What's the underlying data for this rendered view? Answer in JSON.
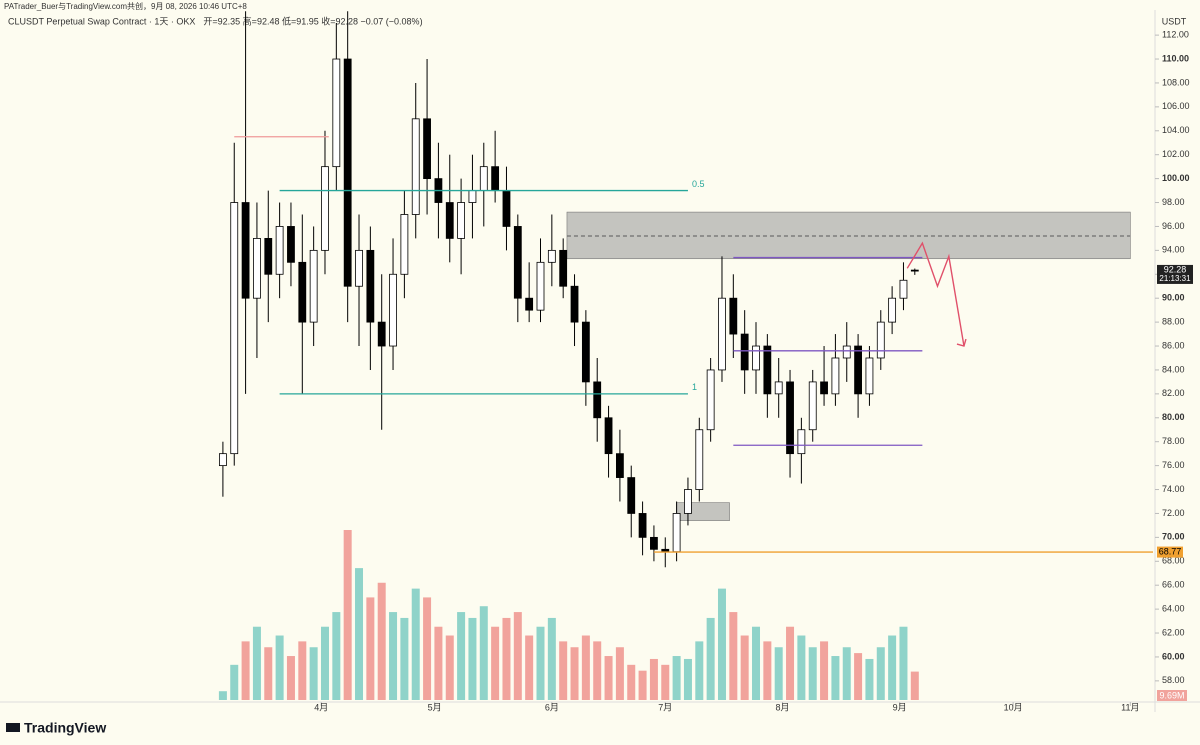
{
  "watermark": "PATrader_Buer与TradingView.com共创，9月 08, 2026 10:46 UTC+8",
  "branding": "TradingView",
  "chart_data": {
    "type": "candlestick",
    "title": "CLUSDT Perpetual Swap Contract · 1天 · OKX",
    "legend_text": "开=92.35  高=92.48  低=91.95  收=92.28  −0.07 (−0.08%)",
    "currency": "USDT",
    "x": [
      5,
      8,
      11,
      14,
      17,
      20,
      23,
      26,
      29,
      32,
      35,
      38,
      41,
      44,
      47,
      50,
      53,
      56,
      59,
      62,
      65,
      68,
      71,
      74,
      77,
      80,
      83,
      86,
      89,
      92,
      95,
      98,
      101,
      104,
      107,
      110,
      113,
      116,
      119,
      122,
      125,
      128,
      131,
      134,
      137,
      140,
      143,
      146,
      149,
      152,
      155,
      158,
      161,
      164,
      167,
      170,
      173,
      176,
      179,
      182,
      185,
      188
    ],
    "open": [
      76,
      77,
      98,
      90,
      95,
      92,
      96,
      93,
      88,
      94,
      101,
      110,
      91,
      94,
      88,
      86,
      92,
      97,
      105,
      100,
      98,
      95,
      98,
      99,
      101,
      99,
      96,
      90,
      89,
      93,
      94,
      91,
      88,
      83,
      80,
      77,
      75,
      72,
      70,
      69,
      68.8,
      72,
      74,
      79,
      84,
      90,
      87,
      84,
      86,
      82,
      83,
      77,
      79,
      83,
      82,
      85,
      86,
      82,
      85,
      88,
      90,
      92.35
    ],
    "high": [
      78,
      103,
      114,
      98,
      99,
      98,
      98,
      97,
      96,
      104,
      113,
      114,
      97,
      96,
      92,
      95,
      99,
      108,
      110,
      103,
      102,
      100,
      102,
      103,
      104,
      101,
      97,
      93,
      95,
      97,
      95,
      92,
      89,
      85,
      81,
      79,
      76,
      73,
      71,
      70,
      73,
      75,
      80,
      85,
      93.5,
      92,
      89,
      88,
      87,
      85,
      84,
      80,
      84,
      86,
      87,
      88,
      87,
      86,
      89,
      91,
      93,
      92.48
    ],
    "low": [
      73.4,
      76,
      82,
      85,
      88,
      90,
      91,
      82,
      86,
      92,
      99,
      88,
      86,
      84,
      79,
      84,
      90,
      95,
      97,
      95,
      93,
      92,
      95,
      96,
      98,
      94,
      88,
      88,
      88,
      91,
      90,
      86,
      81,
      78,
      75,
      73,
      70,
      68.5,
      68,
      67.5,
      68,
      71,
      73,
      78,
      83,
      85,
      82,
      82,
      80,
      80,
      75,
      74.5,
      78,
      81,
      81,
      83,
      80,
      81,
      84,
      87,
      89,
      91.95
    ],
    "close": [
      77,
      98,
      90,
      95,
      92,
      96,
      93,
      88,
      94,
      101,
      110,
      91,
      94,
      88,
      86,
      92,
      97,
      105,
      100,
      98,
      95,
      98,
      99,
      101,
      99,
      96,
      90,
      89,
      93,
      94,
      91,
      88,
      83,
      80,
      77,
      75,
      72,
      70,
      69,
      68.8,
      72,
      74,
      79,
      84,
      90,
      87,
      84,
      86,
      82,
      83,
      77,
      79,
      83,
      82,
      85,
      86,
      82,
      85,
      88,
      90,
      91.5,
      92.28
    ],
    "volume": [
      3,
      12,
      20,
      25,
      18,
      22,
      15,
      20,
      18,
      25,
      30,
      58,
      45,
      35,
      40,
      30,
      28,
      38,
      35,
      25,
      22,
      30,
      28,
      32,
      25,
      28,
      30,
      22,
      25,
      28,
      20,
      18,
      22,
      20,
      15,
      18,
      12,
      10,
      14,
      12,
      15,
      14,
      20,
      28,
      38,
      30,
      22,
      25,
      20,
      18,
      25,
      22,
      18,
      20,
      15,
      18,
      16,
      14,
      18,
      22,
      25,
      9.69
    ],
    "volume_label": "9.69M",
    "price_label": "92.28",
    "countdown": "21:13:31",
    "up_color": "#ffffff",
    "down_color": "#000000",
    "volume_up_color": "#8fd3c9",
    "volume_down_color": "#f1a39c",
    "xlim": [
      0,
      251
    ],
    "xticks": [
      {
        "value": 31,
        "label": "4月"
      },
      {
        "value": 61,
        "label": "5月"
      },
      {
        "value": 92,
        "label": "6月"
      },
      {
        "value": 122,
        "label": "7月"
      },
      {
        "value": 153,
        "label": "8月"
      },
      {
        "value": 184,
        "label": "9月"
      },
      {
        "value": 214,
        "label": "10月"
      },
      {
        "value": 245,
        "label": "11月"
      }
    ],
    "ylim": [
      56.4,
      114.1
    ],
    "yticks": [
      {
        "value": 58,
        "label": "58.00"
      },
      {
        "value": 60,
        "label": "60.00"
      },
      {
        "value": 62,
        "label": "62.00"
      },
      {
        "value": 64,
        "label": "64.00"
      },
      {
        "value": 66,
        "label": "66.00"
      },
      {
        "value": 68,
        "label": "68.00"
      },
      {
        "value": 70,
        "label": "70.00"
      },
      {
        "value": 72,
        "label": "72.00"
      },
      {
        "value": 74,
        "label": "74.00"
      },
      {
        "value": 76,
        "label": "76.00"
      },
      {
        "value": 78,
        "label": "78.00"
      },
      {
        "value": 80,
        "label": "80.00"
      },
      {
        "value": 82,
        "label": "82.00"
      },
      {
        "value": 84,
        "label": "84.00"
      },
      {
        "value": 86,
        "label": "86.00"
      },
      {
        "value": 88,
        "label": "88.00"
      },
      {
        "value": 90,
        "label": "90.00"
      },
      {
        "value": 92,
        "label": "92.00"
      },
      {
        "value": 94,
        "label": "94.00"
      },
      {
        "value": 96,
        "label": "96.00"
      },
      {
        "value": 98,
        "label": "98.00"
      },
      {
        "value": 100,
        "label": "100.00"
      },
      {
        "value": 102,
        "label": "102.00"
      },
      {
        "value": 104,
        "label": "104.00"
      },
      {
        "value": 106,
        "label": "106.00"
      },
      {
        "value": 108,
        "label": "108.00"
      },
      {
        "value": 110,
        "label": "110.00"
      },
      {
        "value": 112,
        "label": "112.00"
      }
    ],
    "grid": false,
    "zones": [
      {
        "range": [
          93.3,
          97.2
        ],
        "x": [
          96,
          245
        ],
        "color": "#9e9e9e"
      },
      {
        "range": [
          71.4,
          72.9
        ],
        "x": [
          125,
          139
        ],
        "color": "#9e9e9e"
      }
    ],
    "levels": [
      {
        "value": 99,
        "x": [
          20,
          128
        ],
        "color": "#26a69a",
        "label": "0.5"
      },
      {
        "value": 82,
        "x": [
          20,
          128
        ],
        "color": "#26a69a",
        "label": "1"
      },
      {
        "value": 103.5,
        "x": [
          8,
          33
        ],
        "color": "#ef9a9a"
      },
      {
        "value": 95.2,
        "x": [
          96,
          245
        ],
        "color": "#6d6d6d",
        "dash": true
      },
      {
        "value": 93.4,
        "x": [
          140,
          190
        ],
        "color": "#7e57c2"
      },
      {
        "value": 85.6,
        "x": [
          140,
          190
        ],
        "color": "#7e57c2"
      },
      {
        "value": 77.7,
        "x": [
          140,
          190
        ],
        "color": "#7e57c2"
      },
      {
        "value": 68.77,
        "x": [
          119,
          251
        ],
        "color": "#f0a030",
        "axis_label": true
      }
    ],
    "projection": {
      "x": [
        186,
        190,
        194,
        197,
        201
      ],
      "y": [
        92.5,
        94.6,
        91,
        93.5,
        86
      ],
      "color": "#e0506a"
    }
  }
}
